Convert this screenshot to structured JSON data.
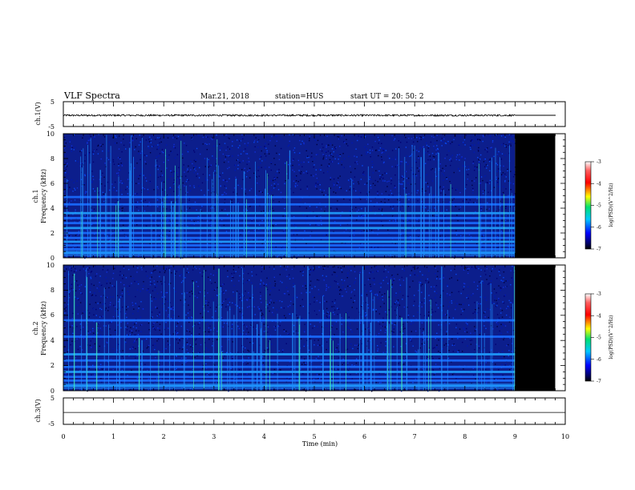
{
  "header": {
    "title": "VLF Spectra",
    "date": "Mar.21, 2018",
    "station": "station=HUS",
    "start": "start  UT =   20: 50: 2"
  },
  "chart_data": [
    {
      "type": "line",
      "name": "ch1-waveform",
      "ylabel": "ch.1(V)",
      "ylim": [
        -5,
        5
      ],
      "yticks": [
        "5",
        "-5"
      ],
      "xlim": [
        0,
        10
      ],
      "baseline": -0.5,
      "noise_amplitude": 0.35,
      "data_end_min": 9.0
    },
    {
      "type": "heatmap",
      "name": "ch1-spectrogram",
      "ylabel": "ch.1\nFrequency  (kHz)",
      "ylim": [
        0,
        10
      ],
      "yticks": [
        "0",
        "2",
        "4",
        "6",
        "8",
        "10"
      ],
      "xlim": [
        0,
        10
      ],
      "data_end_min": 9.0,
      "no_data_end_min": 9.8,
      "bands_khz": [
        0.4,
        0.7,
        1.0,
        1.3,
        1.6,
        2.0,
        2.4,
        2.8,
        3.2,
        3.6,
        4.3,
        4.9
      ],
      "colorbar": {
        "label": "log(PSD)(V^2/Hz)",
        "ticks": [
          "-3",
          "-4",
          "-5",
          "-6",
          "-7"
        ],
        "range": [
          -7,
          -3
        ]
      }
    },
    {
      "type": "heatmap",
      "name": "ch2-spectrogram",
      "ylabel": "ch.2\nFrequency  (kHz)",
      "ylim": [
        0,
        10
      ],
      "yticks": [
        "0",
        "2",
        "4",
        "6",
        "8",
        "10"
      ],
      "xlim": [
        0,
        10
      ],
      "data_end_min": 9.0,
      "no_data_end_min": 9.8,
      "bands_khz": [
        0.4,
        0.8,
        1.1,
        1.5,
        1.9,
        2.4,
        2.9,
        4.3,
        5.6
      ],
      "colorbar": {
        "label": "log(PSD)(V^2/Hz)",
        "ticks": [
          "-3",
          "-4",
          "-5",
          "-6",
          "-7"
        ],
        "range": [
          -7,
          -3
        ]
      }
    },
    {
      "type": "line",
      "name": "ch3-waveform",
      "ylabel": "ch.3(V)",
      "ylim": [
        -5,
        5
      ],
      "yticks": [
        "5",
        "-5"
      ],
      "xlim": [
        0,
        10
      ],
      "baseline": -0.5,
      "noise_amplitude": 0.0,
      "data_end_min": 10.0
    }
  ],
  "xaxis": {
    "label": "Time  (min)",
    "ticks": [
      "0",
      "1",
      "2",
      "3",
      "4",
      "5",
      "6",
      "7",
      "8",
      "9",
      "10"
    ]
  }
}
